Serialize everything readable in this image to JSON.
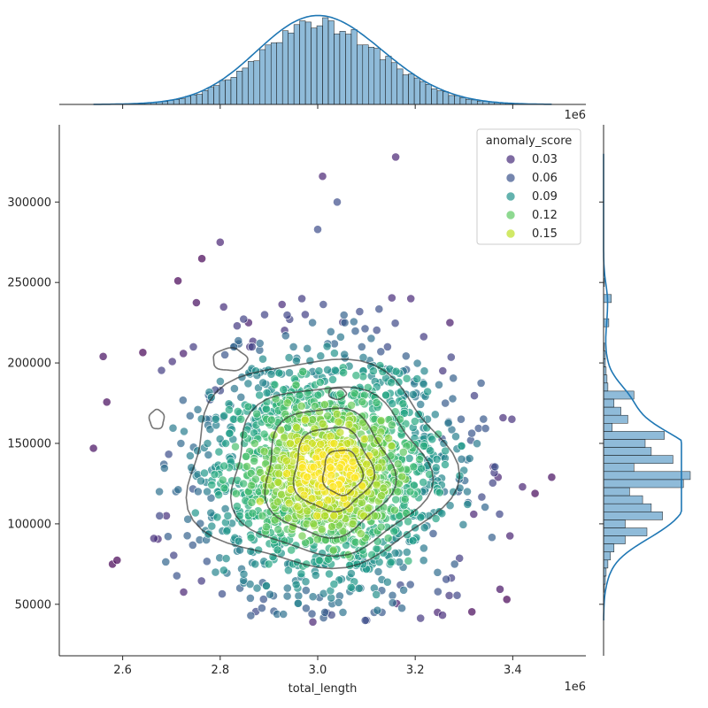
{
  "chart_data": {
    "type": "scatter",
    "xlabel": "total_length",
    "ylabel": "",
    "x_offset_label": "1e6",
    "x_offset_label_top": "1e6",
    "xlim": [
      2.47,
      3.55
    ],
    "ylim": [
      18000,
      348000
    ],
    "x_ticks": [
      2.6,
      2.8,
      3.0,
      3.2,
      3.4
    ],
    "x_tick_labels": [
      "2.6",
      "2.8",
      "3.0",
      "3.2",
      "3.4"
    ],
    "y_ticks": [
      50000,
      100000,
      150000,
      200000,
      250000,
      300000
    ],
    "y_tick_labels": [
      "50000",
      "100000",
      "150000",
      "200000",
      "250000",
      "300000"
    ],
    "legend": {
      "title": "anomaly_score",
      "placement": "top-right",
      "entries": [
        {
          "label": "0.03",
          "color": "#472c7a"
        },
        {
          "label": "0.06",
          "color": "#3b528b"
        },
        {
          "label": "0.09",
          "color": "#21918c"
        },
        {
          "label": "0.12",
          "color": "#5ec962"
        },
        {
          "label": "0.15",
          "color": "#bddf26"
        }
      ]
    },
    "colormap": "viridis",
    "hue_range": [
      0.015,
      0.165
    ],
    "point_distribution": {
      "count": 2000,
      "x_mean": 3.02,
      "x_sd": 0.13,
      "y_mean": 133000,
      "y_sd": 37000
    },
    "outlier_points": [
      {
        "x": 3.37,
        "y": 129000,
        "score": 0.03
      },
      {
        "x": 3.48,
        "y": 129000,
        "score": 0.02
      },
      {
        "x": 3.42,
        "y": 123000,
        "score": 0.03
      },
      {
        "x": 3.16,
        "y": 328000,
        "score": 0.03
      },
      {
        "x": 3.01,
        "y": 316000,
        "score": 0.03
      },
      {
        "x": 3.04,
        "y": 300000,
        "score": 0.05
      },
      {
        "x": 3.0,
        "y": 283000,
        "score": 0.05
      },
      {
        "x": 2.54,
        "y": 147000,
        "score": 0.02
      },
      {
        "x": 2.56,
        "y": 204000,
        "score": 0.02
      },
      {
        "x": 2.99,
        "y": 39000,
        "score": 0.03
      },
      {
        "x": 3.32,
        "y": 106000,
        "score": 0.03
      },
      {
        "x": 2.8,
        "y": 275000,
        "score": 0.03
      }
    ],
    "contour_levels": [
      {
        "cx": 3.0,
        "cy": 137000,
        "rx": 0.27,
        "ry": 64000
      },
      {
        "cx": 3.02,
        "cy": 133000,
        "rx": 0.2,
        "ry": 52000
      },
      {
        "cx": 3.02,
        "cy": 132000,
        "rx": 0.13,
        "ry": 40000
      },
      {
        "cx": 3.03,
        "cy": 134000,
        "rx": 0.08,
        "ry": 26000
      },
      {
        "cx": 3.05,
        "cy": 132000,
        "rx": 0.04,
        "ry": 14000
      }
    ],
    "contour_islands": [
      {
        "cx": 2.82,
        "cy": 202000,
        "rx": 0.035,
        "ry": 7000
      },
      {
        "cx": 3.04,
        "cy": 181000,
        "rx": 0.018,
        "ry": 3500
      },
      {
        "cx": 2.67,
        "cy": 165000,
        "rx": 0.015,
        "ry": 6000
      }
    ],
    "top_histogram": {
      "bin_start": 2.54,
      "bin_end": 3.48,
      "bins": 80,
      "density_peak": 3.02,
      "color": "#1f77b4"
    },
    "right_histogram": {
      "bins": [
        {
          "y": 225000,
          "count": 0.06
        },
        {
          "y": 240000,
          "count": 0.09
        },
        {
          "y": 250000,
          "count": 0.01
        },
        {
          "y": 210000,
          "count": 0.01
        },
        {
          "y": 205000,
          "count": 0.02
        },
        {
          "y": 200000,
          "count": 0.02
        },
        {
          "y": 195000,
          "count": 0.03
        },
        {
          "y": 190000,
          "count": 0.04
        },
        {
          "y": 185000,
          "count": 0.05
        },
        {
          "y": 180000,
          "count": 0.35
        },
        {
          "y": 175000,
          "count": 0.12
        },
        {
          "y": 170000,
          "count": 0.2
        },
        {
          "y": 165000,
          "count": 0.28
        },
        {
          "y": 160000,
          "count": 0.1
        },
        {
          "y": 155000,
          "count": 0.7
        },
        {
          "y": 150000,
          "count": 0.48
        },
        {
          "y": 145000,
          "count": 0.55
        },
        {
          "y": 140000,
          "count": 0.8
        },
        {
          "y": 135000,
          "count": 0.35
        },
        {
          "y": 130000,
          "count": 1.0
        },
        {
          "y": 125000,
          "count": 0.92
        },
        {
          "y": 120000,
          "count": 0.3
        },
        {
          "y": 115000,
          "count": 0.45
        },
        {
          "y": 110000,
          "count": 0.55
        },
        {
          "y": 105000,
          "count": 0.68
        },
        {
          "y": 100000,
          "count": 0.25
        },
        {
          "y": 95000,
          "count": 0.5
        },
        {
          "y": 90000,
          "count": 0.25
        },
        {
          "y": 85000,
          "count": 0.12
        },
        {
          "y": 80000,
          "count": 0.08
        },
        {
          "y": 75000,
          "count": 0.05
        },
        {
          "y": 70000,
          "count": 0.03
        },
        {
          "y": 65000,
          "count": 0.02
        },
        {
          "y": 60000,
          "count": 0.01
        }
      ],
      "color": "#1f77b4"
    }
  }
}
